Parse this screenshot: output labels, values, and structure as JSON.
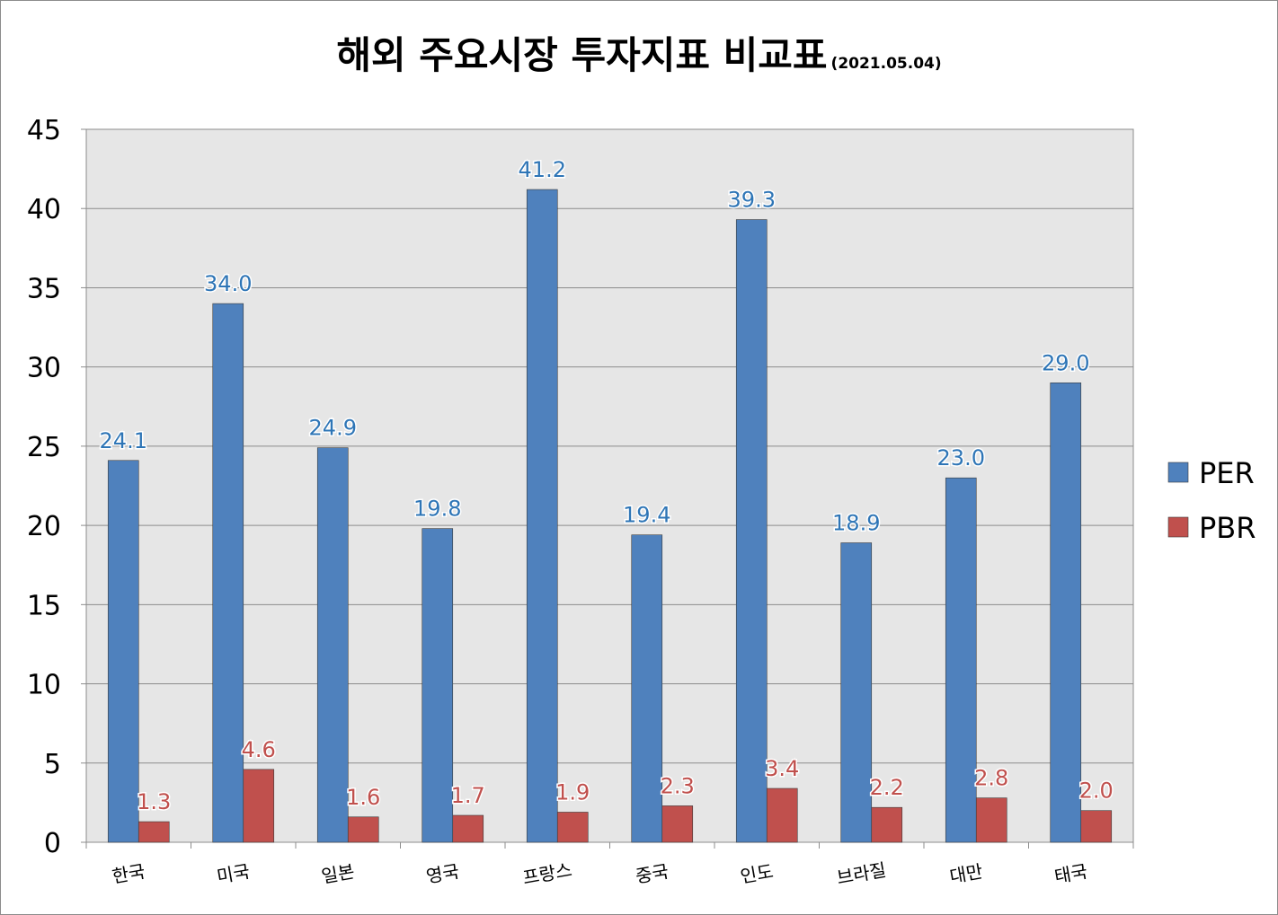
{
  "chart_data": {
    "type": "bar",
    "title": "해외 주요시장 투자지표 비교표",
    "subtitle": "(2021.05.04)",
    "categories": [
      "한국",
      "미국",
      "일본",
      "영국",
      "프랑스",
      "중국",
      "인도",
      "브라질",
      "대만",
      "태국"
    ],
    "series": [
      {
        "name": "PER",
        "color": "#4f81bd",
        "label_color": "#2e75b6",
        "values": [
          24.1,
          34.0,
          24.9,
          19.8,
          41.2,
          19.4,
          39.3,
          18.9,
          23.0,
          29.0
        ],
        "labels": [
          "24.1",
          "34.0",
          "24.9",
          "19.8",
          "41.2",
          "19.4",
          "39.3",
          "18.9",
          "23.0",
          "29.0"
        ]
      },
      {
        "name": "PBR",
        "color": "#c0504d",
        "label_color": "#c0504d",
        "values": [
          1.3,
          4.6,
          1.6,
          1.7,
          1.9,
          2.3,
          3.4,
          2.2,
          2.8,
          2.0
        ],
        "labels": [
          "1.3",
          "4.6",
          "1.6",
          "1.7",
          "1.9",
          "2.3",
          "3.4",
          "2.2",
          "2.8",
          "2.0"
        ]
      }
    ],
    "ylim": [
      0,
      45
    ],
    "yticks": [
      "0",
      "5",
      "10",
      "15",
      "20",
      "25",
      "30",
      "35",
      "40",
      "45"
    ],
    "grid": true,
    "legend": "right",
    "plot_background": "#e6e6e6"
  }
}
